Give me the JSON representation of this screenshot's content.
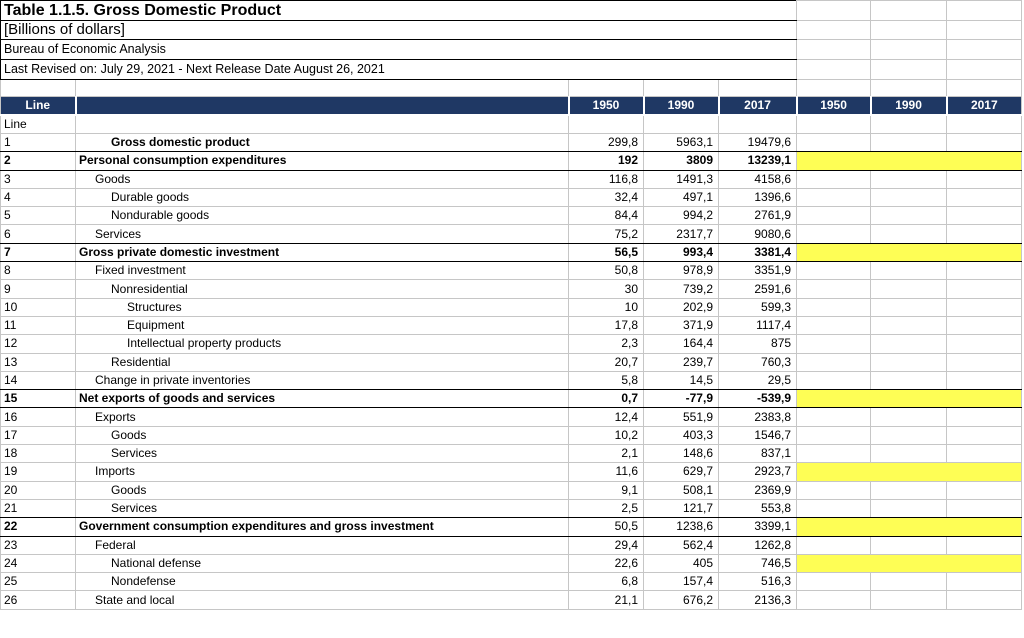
{
  "title": "Table 1.1.5. Gross Domestic Product",
  "subtitle": "[Billions of dollars]",
  "source": "Bureau of Economic Analysis",
  "revision_note": "Last Revised on: July 29, 2021 - Next Release Date August 26, 2021",
  "header": {
    "line_label": "Line",
    "years_left": [
      "1950",
      "1990",
      "2017"
    ],
    "years_right": [
      "1950",
      "1990",
      "2017"
    ]
  },
  "line_row_label": "Line",
  "colors": {
    "header_bg": "#1F3864",
    "highlight": "#FEFE55",
    "grid": "#C6C6C6",
    "section_border": "#000000"
  },
  "rows": [
    {
      "line": "1",
      "desc": "Gross domestic product",
      "indent": 2,
      "bold_desc": true,
      "bold_line": false,
      "bold_vals": false,
      "section": false,
      "highlight": false,
      "v1950": "299,8",
      "v1990": "5963,1",
      "v2017": "19479,6"
    },
    {
      "line": "2",
      "desc": "Personal consumption expenditures",
      "indent": 0,
      "bold_desc": true,
      "bold_line": true,
      "bold_vals": true,
      "section": true,
      "highlight": true,
      "v1950": "192",
      "v1990": "3809",
      "v2017": "13239,1"
    },
    {
      "line": "3",
      "desc": "Goods",
      "indent": 1,
      "bold_desc": false,
      "bold_line": false,
      "bold_vals": false,
      "section": false,
      "highlight": false,
      "v1950": "116,8",
      "v1990": "1491,3",
      "v2017": "4158,6"
    },
    {
      "line": "4",
      "desc": "Durable goods",
      "indent": 2,
      "bold_desc": false,
      "bold_line": false,
      "bold_vals": false,
      "section": false,
      "highlight": false,
      "v1950": "32,4",
      "v1990": "497,1",
      "v2017": "1396,6"
    },
    {
      "line": "5",
      "desc": "Nondurable goods",
      "indent": 2,
      "bold_desc": false,
      "bold_line": false,
      "bold_vals": false,
      "section": false,
      "highlight": false,
      "v1950": "84,4",
      "v1990": "994,2",
      "v2017": "2761,9"
    },
    {
      "line": "6",
      "desc": "Services",
      "indent": 1,
      "bold_desc": false,
      "bold_line": false,
      "bold_vals": false,
      "section": false,
      "highlight": false,
      "v1950": "75,2",
      "v1990": "2317,7",
      "v2017": "9080,6"
    },
    {
      "line": "7",
      "desc": "Gross private domestic investment",
      "indent": 0,
      "bold_desc": true,
      "bold_line": true,
      "bold_vals": true,
      "section": true,
      "highlight": true,
      "v1950": "56,5",
      "v1990": "993,4",
      "v2017": "3381,4"
    },
    {
      "line": "8",
      "desc": "Fixed investment",
      "indent": 1,
      "bold_desc": false,
      "bold_line": false,
      "bold_vals": false,
      "section": false,
      "highlight": false,
      "v1950": "50,8",
      "v1990": "978,9",
      "v2017": "3351,9"
    },
    {
      "line": "9",
      "desc": "Nonresidential",
      "indent": 2,
      "bold_desc": false,
      "bold_line": false,
      "bold_vals": false,
      "section": false,
      "highlight": false,
      "v1950": "30",
      "v1990": "739,2",
      "v2017": "2591,6"
    },
    {
      "line": "10",
      "desc": "Structures",
      "indent": 3,
      "bold_desc": false,
      "bold_line": false,
      "bold_vals": false,
      "section": false,
      "highlight": false,
      "v1950": "10",
      "v1990": "202,9",
      "v2017": "599,3"
    },
    {
      "line": "11",
      "desc": "Equipment",
      "indent": 3,
      "bold_desc": false,
      "bold_line": false,
      "bold_vals": false,
      "section": false,
      "highlight": false,
      "v1950": "17,8",
      "v1990": "371,9",
      "v2017": "1117,4"
    },
    {
      "line": "12",
      "desc": "Intellectual property products",
      "indent": 3,
      "bold_desc": false,
      "bold_line": false,
      "bold_vals": false,
      "section": false,
      "highlight": false,
      "v1950": "2,3",
      "v1990": "164,4",
      "v2017": "875"
    },
    {
      "line": "13",
      "desc": "Residential",
      "indent": 2,
      "bold_desc": false,
      "bold_line": false,
      "bold_vals": false,
      "section": false,
      "highlight": false,
      "v1950": "20,7",
      "v1990": "239,7",
      "v2017": "760,3"
    },
    {
      "line": "14",
      "desc": "Change in private inventories",
      "indent": 1,
      "bold_desc": false,
      "bold_line": false,
      "bold_vals": false,
      "section": false,
      "highlight": false,
      "v1950": "5,8",
      "v1990": "14,5",
      "v2017": "29,5"
    },
    {
      "line": "15",
      "desc": "Net exports of goods and services",
      "indent": 0,
      "bold_desc": true,
      "bold_line": true,
      "bold_vals": true,
      "section": true,
      "highlight": true,
      "v1950": "0,7",
      "v1990": "-77,9",
      "v2017": "-539,9"
    },
    {
      "line": "16",
      "desc": "Exports",
      "indent": 1,
      "bold_desc": false,
      "bold_line": false,
      "bold_vals": false,
      "section": false,
      "highlight": false,
      "v1950": "12,4",
      "v1990": "551,9",
      "v2017": "2383,8"
    },
    {
      "line": "17",
      "desc": "Goods",
      "indent": 2,
      "bold_desc": false,
      "bold_line": false,
      "bold_vals": false,
      "section": false,
      "highlight": false,
      "v1950": "10,2",
      "v1990": "403,3",
      "v2017": "1546,7"
    },
    {
      "line": "18",
      "desc": "Services",
      "indent": 2,
      "bold_desc": false,
      "bold_line": false,
      "bold_vals": false,
      "section": false,
      "highlight": false,
      "v1950": "2,1",
      "v1990": "148,6",
      "v2017": "837,1"
    },
    {
      "line": "19",
      "desc": "Imports",
      "indent": 1,
      "bold_desc": false,
      "bold_line": false,
      "bold_vals": false,
      "section": false,
      "highlight": true,
      "v1950": "11,6",
      "v1990": "629,7",
      "v2017": "2923,7"
    },
    {
      "line": "20",
      "desc": "Goods",
      "indent": 2,
      "bold_desc": false,
      "bold_line": false,
      "bold_vals": false,
      "section": false,
      "highlight": false,
      "v1950": "9,1",
      "v1990": "508,1",
      "v2017": "2369,9"
    },
    {
      "line": "21",
      "desc": "Services",
      "indent": 2,
      "bold_desc": false,
      "bold_line": false,
      "bold_vals": false,
      "section": false,
      "highlight": false,
      "v1950": "2,5",
      "v1990": "121,7",
      "v2017": "553,8"
    },
    {
      "line": "22",
      "desc": "Government consumption expenditures and gross investment",
      "indent": 0,
      "bold_desc": true,
      "bold_line": true,
      "bold_vals": false,
      "section": true,
      "highlight": true,
      "v1950": "50,5",
      "v1990": "1238,6",
      "v2017": "3399,1"
    },
    {
      "line": "23",
      "desc": "Federal",
      "indent": 1,
      "bold_desc": false,
      "bold_line": false,
      "bold_vals": false,
      "section": false,
      "highlight": false,
      "v1950": "29,4",
      "v1990": "562,4",
      "v2017": "1262,8"
    },
    {
      "line": "24",
      "desc": "National defense",
      "indent": 2,
      "bold_desc": false,
      "bold_line": false,
      "bold_vals": false,
      "section": false,
      "highlight": true,
      "v1950": "22,6",
      "v1990": "405",
      "v2017": "746,5"
    },
    {
      "line": "25",
      "desc": "Nondefense",
      "indent": 2,
      "bold_desc": false,
      "bold_line": false,
      "bold_vals": false,
      "section": false,
      "highlight": false,
      "v1950": "6,8",
      "v1990": "157,4",
      "v2017": "516,3"
    },
    {
      "line": "26",
      "desc": "State and local",
      "indent": 1,
      "bold_desc": false,
      "bold_line": false,
      "bold_vals": false,
      "section": false,
      "highlight": false,
      "v1950": "21,1",
      "v1990": "676,2",
      "v2017": "2136,3"
    }
  ]
}
